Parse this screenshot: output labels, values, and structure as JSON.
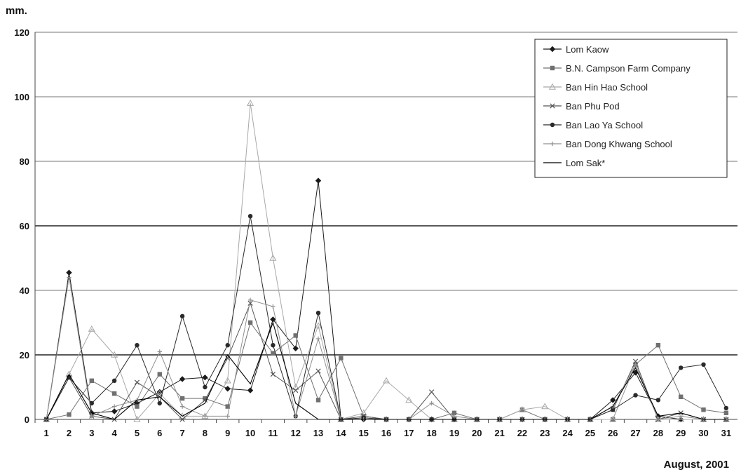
{
  "chart_data": {
    "type": "line",
    "ylabel": "mm.",
    "xlabel": "August, 2001",
    "ylim": [
      0,
      120
    ],
    "yticks": [
      0,
      20,
      40,
      60,
      80,
      100,
      120
    ],
    "categories": [
      "1",
      "2",
      "3",
      "4",
      "5",
      "6",
      "7",
      "8",
      "9",
      "10",
      "11",
      "12",
      "13",
      "14",
      "15",
      "16",
      "17",
      "18",
      "19",
      "20",
      "21",
      "22",
      "23",
      "24",
      "25",
      "26",
      "27",
      "28",
      "29",
      "30",
      "31"
    ],
    "grid": true,
    "legend_position": "top-right",
    "series": [
      {
        "name": "Lom Kaow",
        "color": "#1a1a1a",
        "marker": "diamond",
        "values": [
          0,
          45.5,
          2,
          2.5,
          5,
          8.5,
          12.5,
          13,
          9.5,
          9,
          31,
          22,
          74,
          0,
          0,
          0,
          0,
          0,
          0,
          0,
          0,
          0,
          0,
          0,
          0,
          6,
          14.5,
          1,
          0,
          0,
          0
        ]
      },
      {
        "name": "B.N. Campson Farm Company",
        "color": "#707070",
        "marker": "square",
        "values": [
          0,
          1.5,
          12,
          8,
          4,
          14,
          6.5,
          6.5,
          4,
          30,
          20.5,
          26,
          6,
          19,
          1,
          0,
          0,
          0,
          2,
          0,
          0,
          3,
          0,
          0,
          0,
          0,
          17,
          23,
          7,
          3,
          2
        ]
      },
      {
        "name": "Ban Hin Hao School",
        "color": "#a8a8a8",
        "marker": "triangle",
        "values": [
          0,
          14,
          28,
          20,
          0,
          8,
          1,
          1,
          12,
          98,
          50,
          10,
          29,
          0,
          2,
          12,
          6,
          0,
          0,
          0,
          0,
          3,
          4,
          0,
          0,
          0,
          17,
          0,
          0,
          0,
          0
        ]
      },
      {
        "name": "Ban Phu Pod",
        "color": "#555555",
        "marker": "x",
        "values": [
          0,
          13,
          1,
          0,
          11.5,
          7,
          0,
          6,
          19,
          36,
          14,
          9,
          15,
          0,
          1,
          0,
          0,
          8.5,
          0,
          0,
          0,
          0,
          0,
          0,
          0,
          3,
          18,
          0,
          2,
          0,
          0
        ]
      },
      {
        "name": "Ban Lao Ya School",
        "color": "#2a2a2a",
        "marker": "circle",
        "values": [
          0,
          13,
          5,
          12,
          23,
          5,
          32,
          10,
          23,
          63,
          23,
          1,
          33,
          0,
          0.5,
          0,
          0,
          0,
          0,
          0,
          0,
          0,
          0,
          0,
          0,
          3,
          7.5,
          6,
          16,
          17,
          3.5
        ]
      },
      {
        "name": "Ban Dong Khwang School",
        "color": "#909090",
        "marker": "plus",
        "values": [
          0,
          44,
          1,
          4,
          6,
          21,
          4,
          1,
          1,
          37,
          35,
          1,
          25,
          0,
          0,
          0,
          0,
          5,
          1,
          0,
          0,
          0,
          0,
          0,
          0,
          4,
          17,
          0,
          1,
          0,
          0
        ]
      },
      {
        "name": "Lom Sak*",
        "color": "#000000",
        "marker": "none",
        "values": [
          0,
          14,
          2,
          0,
          6,
          7,
          1,
          5,
          20,
          11,
          30,
          5,
          0,
          0,
          0,
          0,
          0,
          0,
          0,
          0,
          0,
          0,
          0,
          0,
          0,
          4,
          16,
          1,
          2,
          0,
          0
        ]
      }
    ]
  }
}
